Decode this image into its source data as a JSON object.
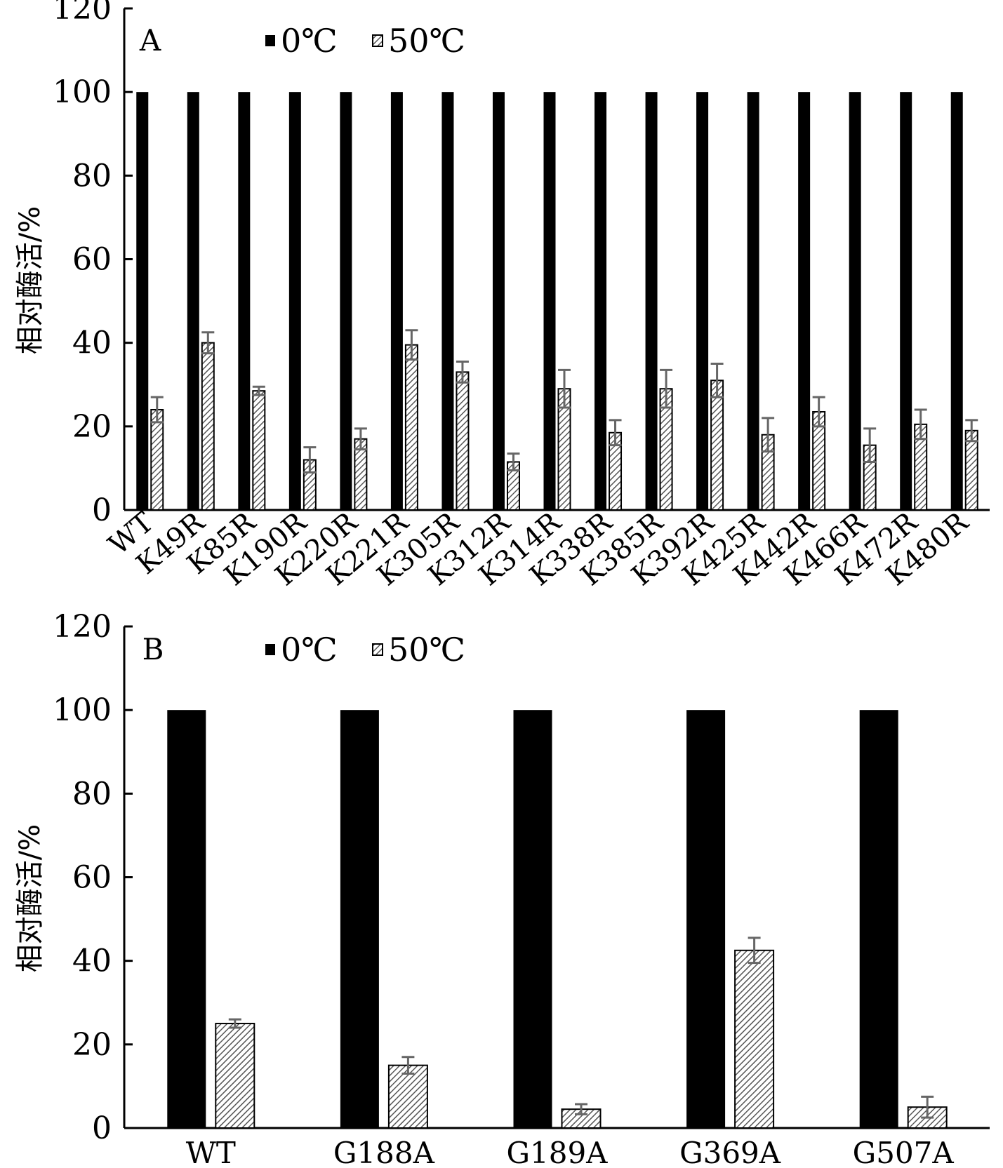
{
  "chart_data": [
    {
      "type": "bar",
      "panel_label": "A",
      "ylabel": "相对酶活/%",
      "ylim": [
        0,
        120
      ],
      "yticks": [
        0,
        20,
        40,
        60,
        80,
        100,
        120
      ],
      "categories": [
        "WT",
        "K49R",
        "K85R",
        "K190R",
        "K220R",
        "K221R",
        "K305R",
        "K312R",
        "K314R",
        "K338R",
        "K385R",
        "K392R",
        "K425R",
        "K442R",
        "K466R",
        "K472R",
        "K480R"
      ],
      "series": [
        {
          "name": "0℃",
          "fill": "solid",
          "color": "#000000",
          "values": [
            100,
            100,
            100,
            100,
            100,
            100,
            100,
            100,
            100,
            100,
            100,
            100,
            100,
            100,
            100,
            100,
            100
          ]
        },
        {
          "name": "50℃",
          "fill": "hatched",
          "color": "#555555",
          "values": [
            24,
            40,
            28.5,
            12,
            17,
            39.5,
            33,
            11.5,
            29,
            18.5,
            29,
            31,
            18,
            23.5,
            15.5,
            20.5,
            19
          ],
          "errors": [
            3,
            2.5,
            1,
            3,
            2.5,
            3.5,
            2.5,
            2,
            4.5,
            3,
            4.5,
            4,
            4,
            3.5,
            4,
            3.5,
            2.5
          ]
        }
      ],
      "legend_position": "top",
      "grid": false
    },
    {
      "type": "bar",
      "panel_label": "B",
      "ylabel": "相对酶活/%",
      "ylim": [
        0,
        120
      ],
      "yticks": [
        0,
        20,
        40,
        60,
        80,
        100,
        120
      ],
      "categories": [
        "WT",
        "G188A",
        "G189A",
        "G369A",
        "G507A"
      ],
      "series": [
        {
          "name": "0℃",
          "fill": "solid",
          "color": "#000000",
          "values": [
            100,
            100,
            100,
            100,
            100
          ]
        },
        {
          "name": "50℃",
          "fill": "hatched",
          "color": "#555555",
          "values": [
            25,
            15,
            4.5,
            42.5,
            5
          ],
          "errors": [
            1,
            2,
            1.2,
            3,
            2.5
          ]
        }
      ],
      "legend_position": "top",
      "grid": false
    }
  ]
}
